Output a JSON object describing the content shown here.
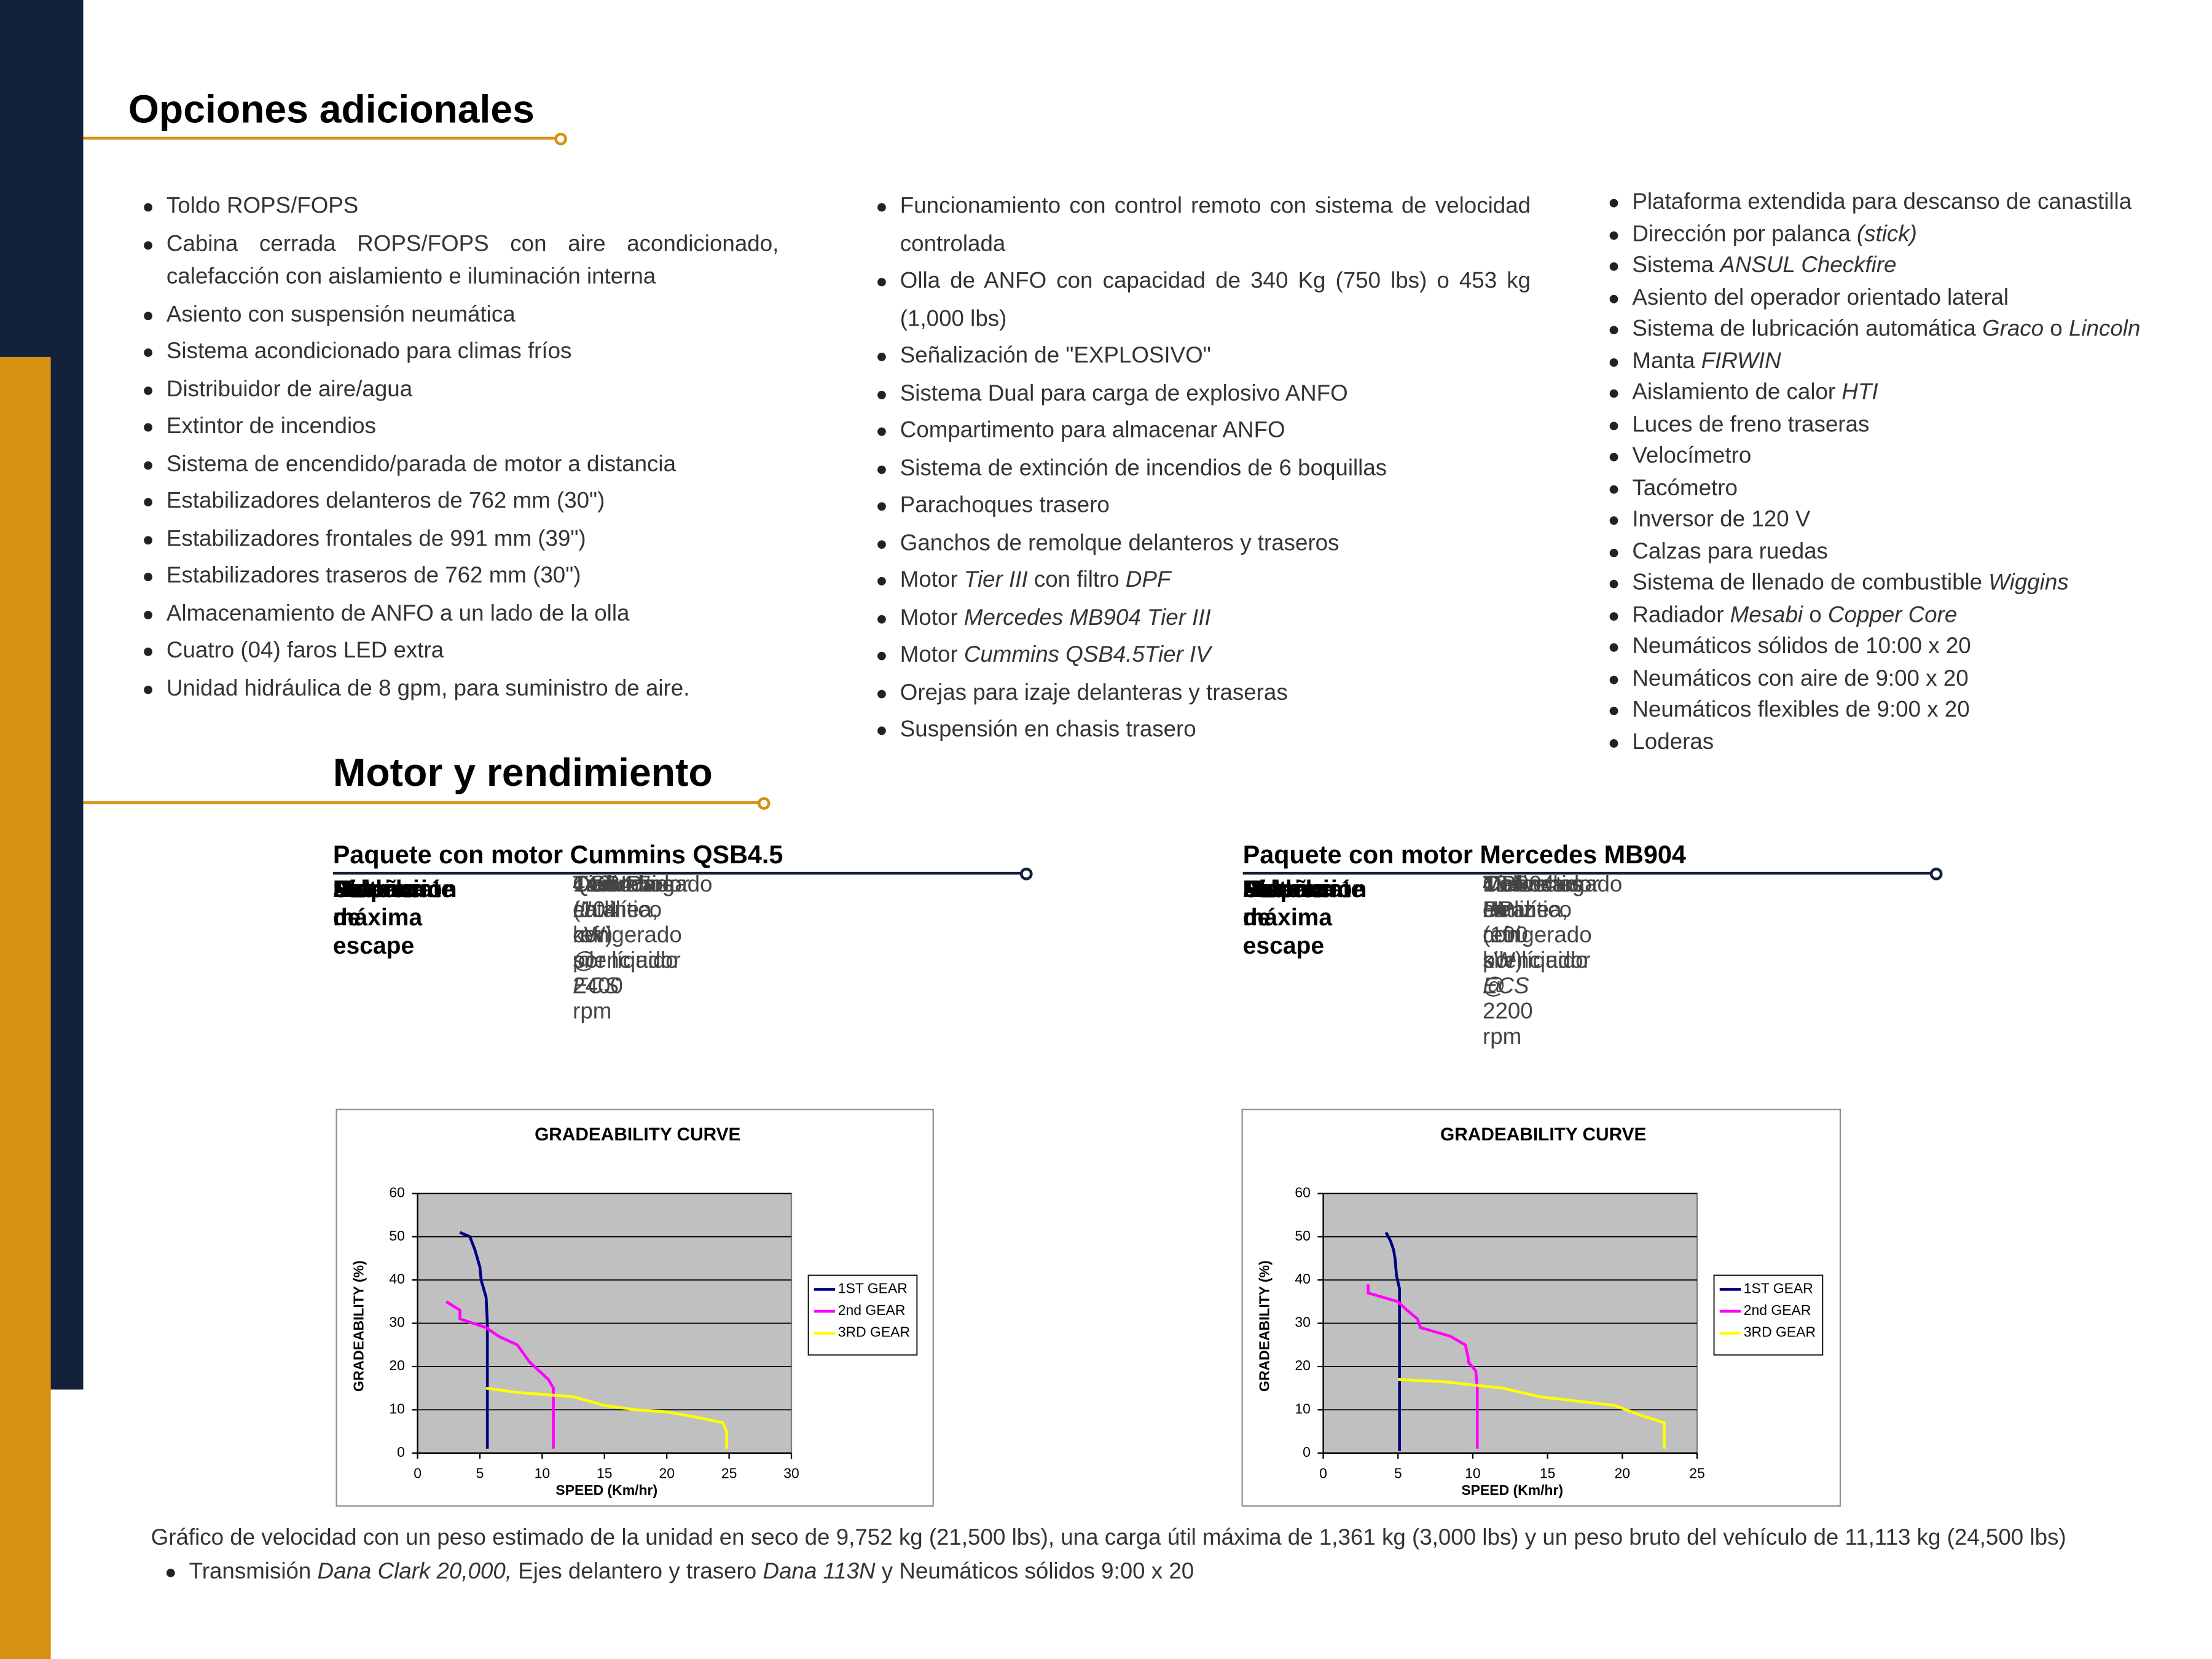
{
  "options": {
    "title": "Opciones adicionales",
    "columns": [
      [
        "Toldo ROPS/FOPS",
        "Cabina cerrada ROPS/FOPS con aire acondicionado, calefacción con aislamiento e iluminación interna",
        "Asiento con suspensión neumática",
        "Sistema acondicionado para climas fríos",
        "Distribuidor de aire/agua",
        "Extintor de incendios",
        "Sistema de encendido/parada de motor a distancia",
        "Estabilizadores delanteros de 762 mm (30\")",
        "Estabilizadores frontales de 991 mm (39\")",
        "Estabilizadores traseros de 762 mm (30\")",
        "Almacenamiento de ANFO a un lado de la olla",
        "Cuatro (04) faros LED extra",
        "Unidad hidráulica de 8 gpm, para suministro de aire."
      ],
      [
        "Funcionamiento con control remoto con sistema de velocidad controlada",
        "Olla de ANFO con capacidad de 340 Kg (750 lbs) o 453 kg (1,000 lbs)",
        "Señalización de \"EXPLOSIVO\"",
        "Sistema Dual para carga de explosivo ANFO",
        "Compartimento para almacenar ANFO",
        "Sistema de extinción de incendios de 6 boquillas",
        "Parachoques trasero",
        "Ganchos de remolque delanteros y traseros",
        [
          "Motor ",
          {
            "italic": "Tier III"
          },
          " con filtro ",
          {
            "italic": "DPF"
          }
        ],
        [
          "Motor ",
          {
            "italic": "Mercedes MB904 Tier III"
          }
        ],
        [
          "Motor ",
          {
            "italic": "Cummins QSB4.5Tier IV"
          }
        ],
        "Orejas para izaje delanteras y traseras",
        "Suspensión en chasis trasero"
      ],
      [
        "Plataforma extendida para descanso de canastilla",
        [
          "Dirección por palanca ",
          {
            "italic": "(stick)"
          }
        ],
        [
          "Sistema ",
          {
            "italic": "ANSUL Checkfire"
          }
        ],
        "Asiento del operador orientado lateral",
        [
          "Sistema de lubricación automática ",
          {
            "italic": "Graco"
          },
          " o ",
          {
            "italic": "Lincoln"
          }
        ],
        [
          "Manta ",
          {
            "italic": "FIRWIN"
          }
        ],
        [
          "Aislamiento de calor ",
          {
            "italic": "HTI"
          }
        ],
        "Luces de freno traseras",
        "Velocímetro",
        "Tacómetro",
        "Inversor de 120 V",
        "Calzas para ruedas",
        [
          "Sistema de llenado de combustible ",
          {
            "italic": "Wiggins"
          }
        ],
        [
          "Radiador ",
          {
            "italic": "Mesabi"
          },
          " o ",
          {
            "italic": "Copper Core"
          }
        ],
        "Neumáticos sólidos de 10:00 x 20",
        "Neumáticos con aire de 9:00 x 20",
        "Neumáticos flexibles de 9:00 x 20",
        "Loderas"
      ]
    ]
  },
  "engine": {
    "title": "Motor y rendimiento",
    "packages": [
      {
        "title": "Paquete con motor Cummins QSB4.5",
        "rows": [
          {
            "label": "Fabricante",
            "value": [
              "Cummins"
            ]
          },
          {
            "label": "Modelo",
            "value": [
              "QSB4.5"
            ]
          },
          {
            "label": "Etapa",
            "value": [
              {
                "italic": "Tier III"
              }
            ]
          },
          {
            "label": "Diseño",
            "value": [
              "4 cilindros en linea, refrigerado por líquido"
            ]
          },
          {
            "label": "Potencia máxima",
            "value": [
              "140HP (104 kW) @ 2400 rpm"
            ]
          },
          {
            "label": "Sistema de escape",
            "value": [
              "Convertidor catalítico con silenciador ",
              {
                "italic": "ECS"
              }
            ]
          },
          {
            "label": "Asipración",
            "value": [
              "Turbocargado"
            ]
          }
        ]
      },
      {
        "title": "Paquete con motor Mercedes MB904",
        "rows": [
          {
            "label": "Fabricante",
            "value": [
              "Mercedes Benz"
            ]
          },
          {
            "label": "Modelo",
            "value": [
              "MB904"
            ]
          },
          {
            "label": "Etapa",
            "value": [
              {
                "italic": "Tier III"
              }
            ]
          },
          {
            "label": "Diseño",
            "value": [
              "4 cilindros en linea, refrigerado por líquido"
            ]
          },
          {
            "label": "Potencia máxima",
            "value": [
              "134 HP (100 kW) @ 2200 rpm"
            ]
          },
          {
            "label": "Sistema de escape",
            "value": [
              "Convertidor catalítico con silenciador ",
              {
                "italic": "ECS"
              }
            ]
          },
          {
            "label": "Asipración",
            "value": [
              "Turbocargado"
            ]
          }
        ]
      }
    ]
  },
  "chart_data": [
    {
      "type": "line",
      "title": "GRADEABILITY CURVE",
      "x_label": "SPEED (Km/hr)",
      "y_label": "GRADEABILITY (%)",
      "xlim": [
        0,
        30
      ],
      "xticks": [
        0,
        5,
        10,
        15,
        20,
        25,
        30
      ],
      "ylim": [
        0,
        60
      ],
      "yticks": [
        0,
        10,
        20,
        30,
        40,
        50,
        60
      ],
      "grid": true,
      "background": "#c0c0c0",
      "legend": "right",
      "series": [
        {
          "name": "1ST GEAR",
          "color": "#000080",
          "x": [
            3.4,
            4.2,
            4.6,
            5.0,
            5.1,
            5.5,
            5.6,
            5.6,
            5.6,
            5.6
          ],
          "values": [
            51,
            50,
            47,
            43,
            40,
            36,
            30,
            20,
            10,
            1
          ]
        },
        {
          "name": "2nd GEAR",
          "color": "#ff00ff",
          "x": [
            2.3,
            3.4,
            3.4,
            5.5,
            6.5,
            8.0,
            9.0,
            10.5,
            10.9,
            10.9
          ],
          "values": [
            35,
            33,
            31,
            29,
            27,
            25,
            21,
            17,
            15,
            1
          ]
        },
        {
          "name": "3RD GEAR",
          "color": "#ffff00",
          "x": [
            5.5,
            8,
            12.5,
            15,
            17.5,
            20,
            22,
            24.5,
            24.8,
            24.8
          ],
          "values": [
            15,
            14,
            13,
            11,
            10,
            9.5,
            8.5,
            7,
            5,
            1
          ]
        }
      ]
    },
    {
      "type": "line",
      "title": "GRADEABILITY CURVE",
      "x_label": "SPEED (Km/hr)",
      "y_label": "GRADEABILITY (%)",
      "xlim": [
        0,
        25
      ],
      "xticks": [
        0,
        5,
        10,
        15,
        20,
        25
      ],
      "ylim": [
        0,
        60
      ],
      "yticks": [
        0,
        10,
        20,
        30,
        40,
        50,
        60
      ],
      "grid": true,
      "background": "#c0c0c0",
      "legend": "right",
      "series": [
        {
          "name": "1ST GEAR",
          "color": "#000080",
          "x": [
            4.2,
            4.5,
            4.7,
            4.8,
            4.9,
            5.1,
            5.1,
            5.1,
            5.1,
            5.1
          ],
          "values": [
            51,
            49,
            47,
            45,
            41,
            38,
            30,
            20,
            10,
            0.5
          ]
        },
        {
          "name": "2nd GEAR",
          "color": "#ff00ff",
          "x": [
            3.0,
            3.0,
            5.0,
            5.6,
            6.3,
            6.5,
            8.5,
            9.5,
            9.7,
            9.7,
            10.2,
            10.3,
            10.3
          ],
          "values": [
            39,
            37,
            35,
            33,
            31,
            29,
            27,
            25,
            22,
            21,
            19,
            15,
            1
          ]
        },
        {
          "name": "3RD GEAR",
          "color": "#ffff00",
          "x": [
            5,
            8,
            12,
            14.5,
            19.5,
            21,
            22.8,
            22.8
          ],
          "values": [
            17,
            16.5,
            15,
            13,
            11,
            9,
            7,
            1
          ]
        }
      ]
    }
  ],
  "footer": {
    "note": "Gráfico de velocidad con un peso estimado de la unidad en seco de 9,752 kg (21,500 lbs), una carga útil máxima de 1,361 kg (3,000 lbs) y un peso bruto del vehículo de 11,113 kg (24,500 lbs)",
    "items": [
      [
        "Transmisión ",
        {
          "italic": "Dana Clark 20,000,"
        },
        " Ejes delantero y trasero ",
        {
          "italic": "Dana 113N"
        },
        " y Neumáticos sólidos 9:00 x 20"
      ]
    ]
  }
}
